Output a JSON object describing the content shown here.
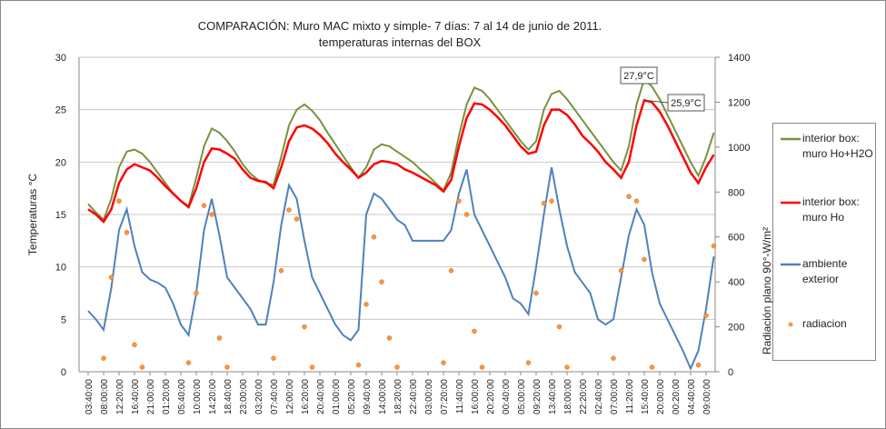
{
  "chart_data": {
    "type": "line",
    "title": "COMPARACIÓN: Muro MAC mixto  y simple- 7 días: 7 al 14 de junio de 2011.",
    "subtitle": "temperaturas internas del BOX",
    "y_label": "Temperaturas °C",
    "y2_label": "Radiación plano 90°-W/m²",
    "categories": [
      "03:40:00",
      null,
      "08:00:00",
      null,
      "12:20:00",
      null,
      "16:40:00",
      null,
      "21:00:00",
      null,
      "01:20:00",
      null,
      "05:40:00",
      null,
      "10:00:00",
      null,
      "14:20:00",
      null,
      "18:40:00",
      null,
      "23:00:00",
      null,
      "03:20:00",
      null,
      "07:40:00",
      null,
      "12:00:00",
      null,
      "16:20:00",
      null,
      "20:40:00",
      null,
      "01:00:00",
      null,
      "05:20:00",
      null,
      "09:40:00",
      null,
      "14:00:00",
      null,
      "18:20:00",
      null,
      "22:40:00",
      null,
      "03:00:00",
      null,
      "07:20:00",
      null,
      "11:40:00",
      null,
      "16:00:00",
      null,
      "20:20:00",
      null,
      "00:40:00",
      null,
      "05:00:00",
      null,
      "09:20:00",
      null,
      "13:40:00",
      null,
      "18:00:00",
      null,
      "22:20:00",
      null,
      "02:40:00",
      null,
      "07:00:00",
      null,
      "11:20:00",
      null,
      "15:40:00",
      null,
      "20:00:00",
      null,
      "00:20:00",
      null,
      "04:40:00",
      null,
      "09:00:00",
      null
    ],
    "series": [
      {
        "name": "interior box: muro Ho+H2O",
        "color": "#77933c",
        "values": [
          16.0,
          15.2,
          14.5,
          16.5,
          19.5,
          21.0,
          21.2,
          20.8,
          20.0,
          19.0,
          18.0,
          17.0,
          16.3,
          15.8,
          18.5,
          21.5,
          23.2,
          22.8,
          22.0,
          21.0,
          19.8,
          18.9,
          18.3,
          18.0,
          17.8,
          20.5,
          23.5,
          25.0,
          25.5,
          24.9,
          24.0,
          22.8,
          21.7,
          20.6,
          19.5,
          18.5,
          19.5,
          21.2,
          21.7,
          21.5,
          21.0,
          20.5,
          20.0,
          19.3,
          18.7,
          18.0,
          17.3,
          19.0,
          22.5,
          25.5,
          27.1,
          26.8,
          26.0,
          25.0,
          24.0,
          23.0,
          22.0,
          21.2,
          22.0,
          25.0,
          26.5,
          26.8,
          26.0,
          25.0,
          24.0,
          23.0,
          22.0,
          21.0,
          20.0,
          19.2,
          21.5,
          25.5,
          27.9,
          27.2,
          26.0,
          24.5,
          23.0,
          21.5,
          20.0,
          18.7,
          20.5,
          22.8
        ]
      },
      {
        "name": "interior box: muro Ho",
        "color": "#ff0000",
        "values": [
          15.5,
          15.0,
          14.3,
          15.5,
          18.0,
          19.3,
          19.8,
          19.5,
          19.2,
          18.5,
          17.7,
          17.0,
          16.3,
          15.7,
          17.5,
          20.0,
          21.3,
          21.2,
          20.8,
          20.3,
          19.3,
          18.5,
          18.2,
          18.1,
          17.5,
          19.5,
          22.0,
          23.3,
          23.5,
          23.2,
          22.6,
          21.8,
          20.8,
          20.0,
          19.3,
          18.5,
          19.0,
          19.8,
          20.1,
          20.0,
          19.8,
          19.3,
          19.0,
          18.6,
          18.2,
          17.8,
          17.2,
          18.3,
          21.5,
          24.2,
          25.6,
          25.5,
          25.0,
          24.3,
          23.5,
          22.5,
          21.5,
          20.8,
          21.0,
          23.5,
          25.0,
          25.0,
          24.5,
          23.6,
          22.5,
          21.8,
          21.0,
          20.0,
          19.3,
          18.5,
          20.0,
          23.5,
          25.9,
          25.7,
          24.8,
          23.5,
          22.0,
          20.5,
          19.0,
          18.0,
          19.5,
          20.7
        ]
      },
      {
        "name": "ambiente exterior",
        "color": "#4f81bd",
        "values": [
          5.8,
          5.0,
          4.0,
          8.0,
          13.5,
          15.5,
          12.0,
          9.5,
          8.8,
          8.5,
          8.0,
          6.5,
          4.5,
          3.5,
          7.5,
          13.5,
          16.5,
          13.0,
          9.0,
          8.0,
          7.0,
          6.0,
          4.5,
          4.5,
          8.5,
          14.0,
          17.8,
          16.5,
          12.5,
          9.0,
          7.5,
          6.0,
          4.5,
          3.5,
          3.0,
          4.0,
          15.0,
          17.0,
          16.5,
          15.5,
          14.5,
          14.0,
          12.5,
          12.5,
          12.5,
          12.5,
          12.5,
          13.5,
          17.0,
          19.3,
          15.0,
          13.5,
          12.0,
          10.5,
          9.0,
          7.0,
          6.5,
          5.5,
          10.0,
          15.0,
          19.5,
          15.5,
          12.0,
          9.5,
          8.5,
          7.5,
          5.0,
          4.5,
          5.0,
          9.0,
          13.0,
          15.5,
          14.0,
          9.5,
          6.5,
          5.0,
          3.5,
          2.0,
          0.3,
          2.0,
          6.0,
          11.0
        ]
      },
      {
        "name": "radiacion",
        "color": "#f79646",
        "type": "scatter",
        "axis": "y2",
        "values": [
          null,
          null,
          60,
          420,
          760,
          620,
          120,
          20,
          null,
          null,
          null,
          null,
          null,
          40,
          350,
          740,
          700,
          150,
          20,
          null,
          null,
          null,
          null,
          null,
          60,
          450,
          720,
          680,
          200,
          20,
          null,
          null,
          null,
          null,
          null,
          30,
          300,
          600,
          400,
          150,
          20,
          null,
          null,
          null,
          null,
          null,
          40,
          450,
          760,
          700,
          180,
          20,
          null,
          null,
          null,
          null,
          null,
          40,
          350,
          750,
          760,
          200,
          20,
          null,
          null,
          null,
          null,
          null,
          60,
          450,
          780,
          760,
          500,
          20,
          null,
          null,
          null,
          null,
          null,
          30,
          250,
          560
        ]
      }
    ],
    "annotations": [
      "27,9°C",
      "25,9°C"
    ],
    "ylim": [
      0,
      30
    ],
    "yticks": [
      0,
      5,
      10,
      15,
      20,
      25,
      30
    ],
    "y2lim": [
      0,
      1400
    ],
    "y2ticks": [
      0,
      200,
      400,
      600,
      800,
      1000,
      1200,
      1400
    ],
    "grid": true
  }
}
